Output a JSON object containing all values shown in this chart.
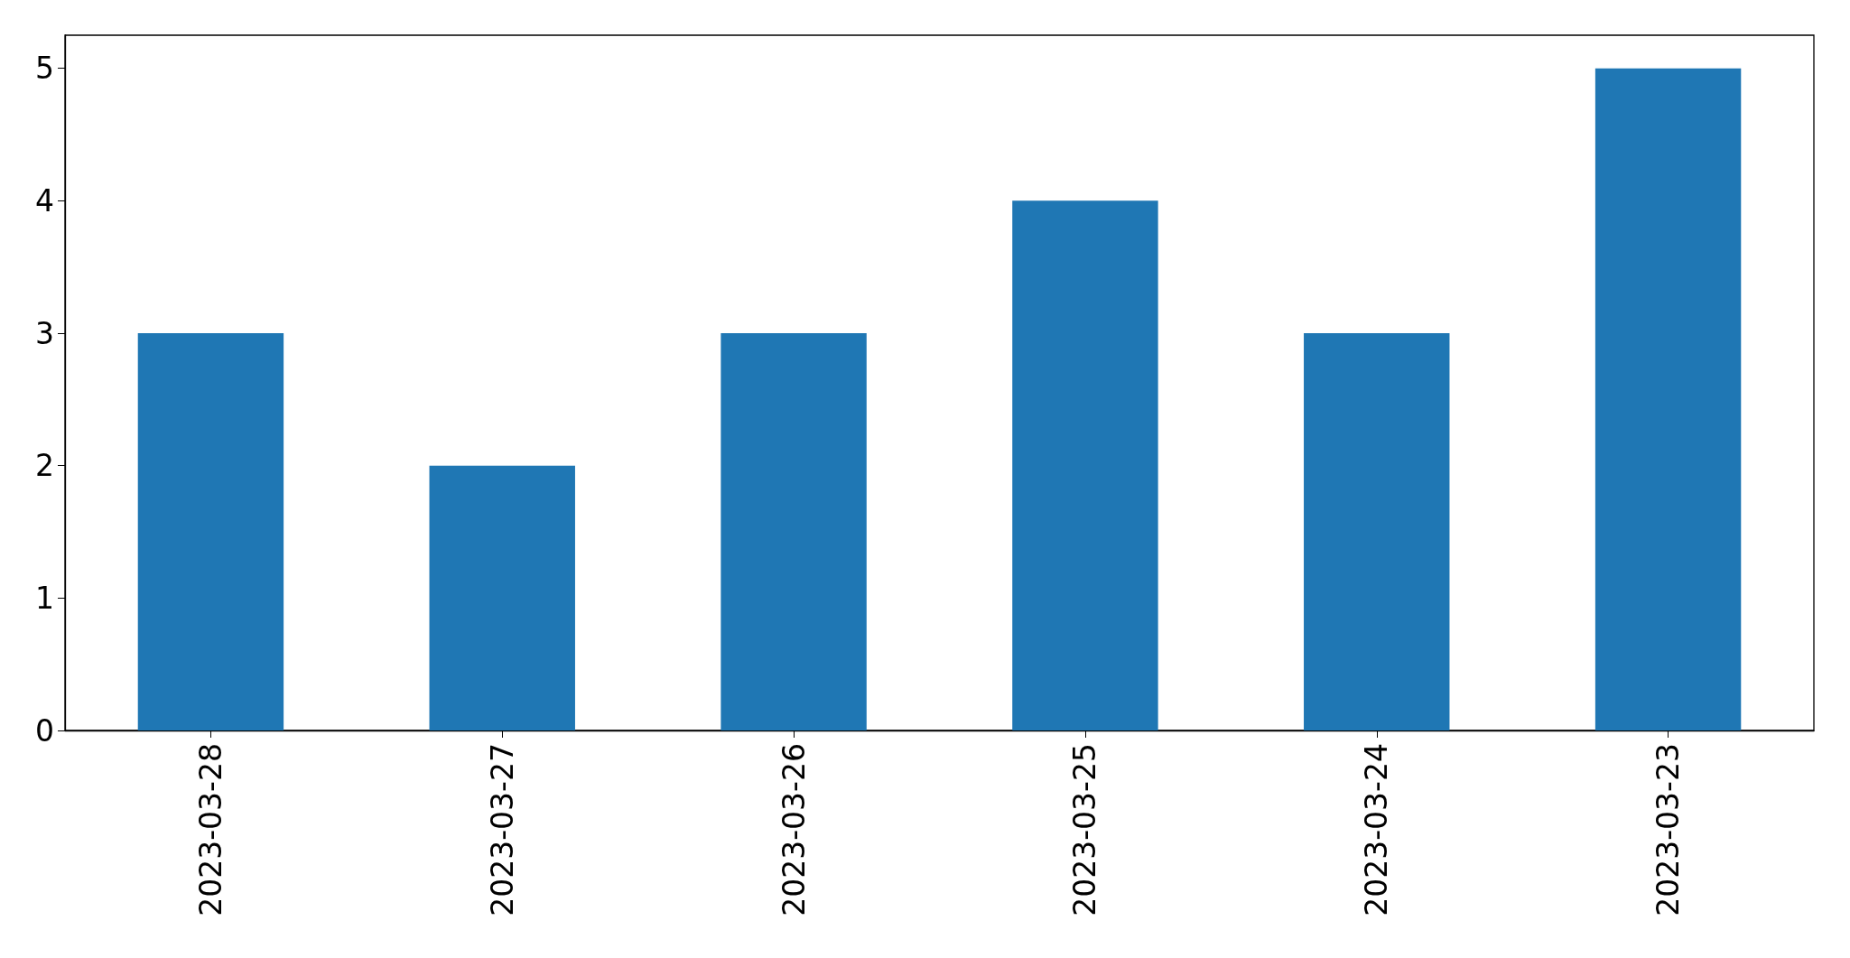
{
  "chart_data": {
    "type": "bar",
    "categories": [
      "2023-03-28",
      "2023-03-27",
      "2023-03-26",
      "2023-03-25",
      "2023-03-24",
      "2023-03-23"
    ],
    "values": [
      3,
      2,
      3,
      4,
      3,
      5
    ],
    "color": "#1f77b4",
    "ylim": [
      0,
      5.25
    ],
    "yticks": [
      0,
      1,
      2,
      3,
      4,
      5
    ],
    "grid": false
  }
}
